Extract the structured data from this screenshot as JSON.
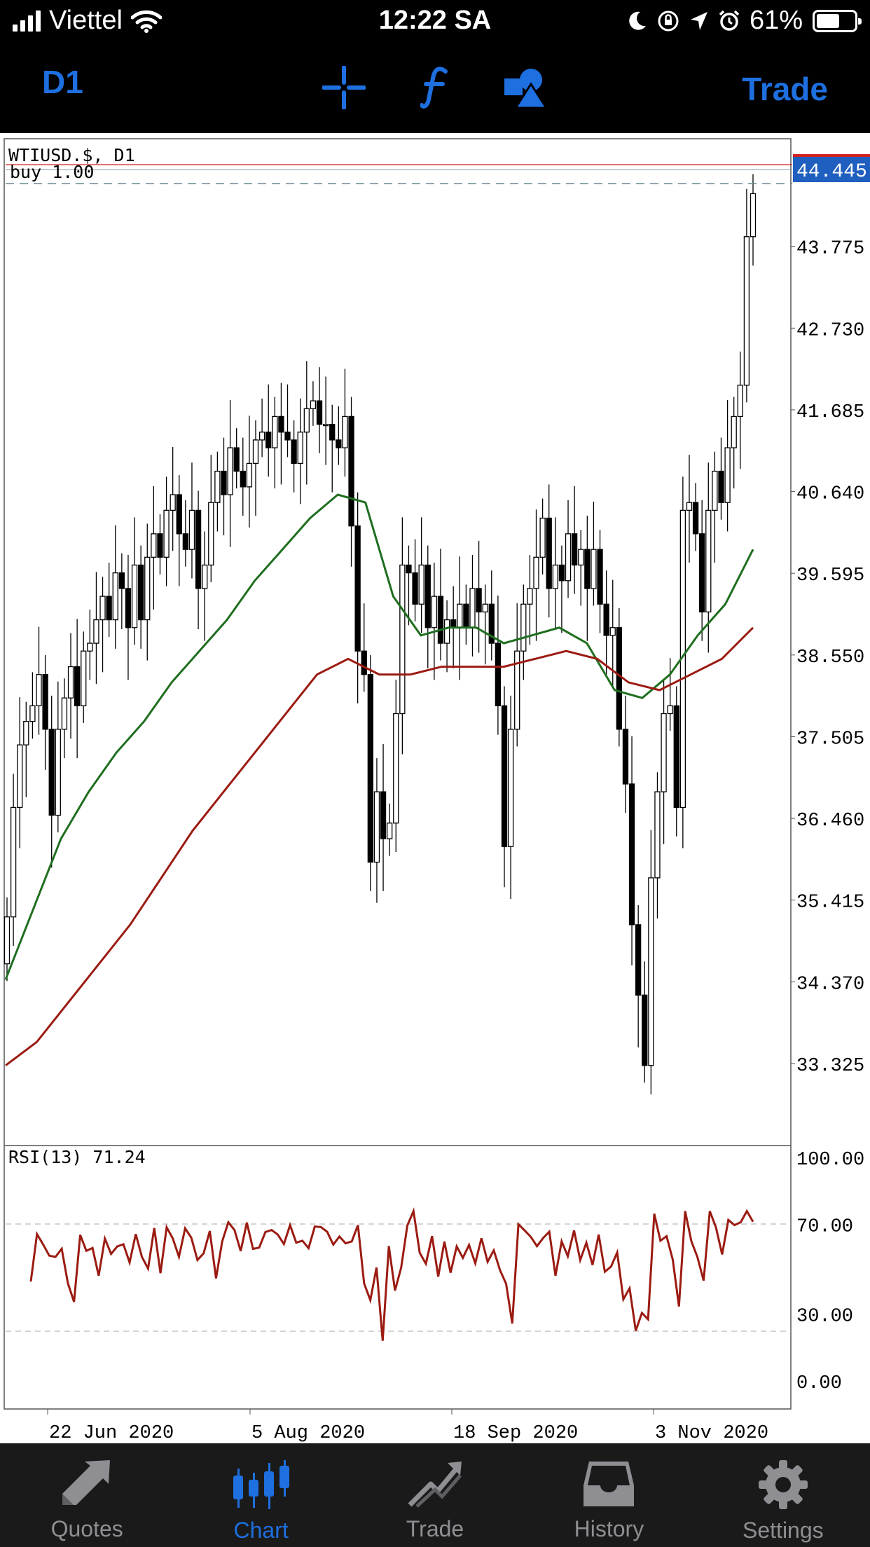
{
  "status_bar": {
    "carrier": "Viettel",
    "time": "12:22 SA",
    "battery": "61%",
    "battery_level": 0.61
  },
  "toolbar": {
    "period": "D1",
    "trade_label": "Trade",
    "icons": [
      "crosshair-icon",
      "function-icon",
      "objects-icon"
    ]
  },
  "chart": {
    "symbol_label": "WTIUSD.$, D1",
    "position_label": "buy 1.00",
    "current_price": "44.445",
    "price_axis": [
      "43.775",
      "42.730",
      "41.685",
      "40.640",
      "39.595",
      "38.550",
      "37.505",
      "36.460",
      "35.415",
      "34.370",
      "33.325"
    ],
    "date_axis": [
      "22 Jun 2020",
      "5 Aug 2020",
      "18 Sep 2020",
      "3 Nov 2020"
    ],
    "indicator_label": "RSI(13) 71.24",
    "rsi_axis": [
      "100.00",
      "70.00",
      "30.00",
      "0.00"
    ],
    "colors": {
      "ma_fast": "#1f6e1f",
      "ma_slow": "#9b1b12",
      "rsi_line": "#9b1b12",
      "price_tag": "#1f5fbf",
      "bid_line": "#d02020"
    }
  },
  "chart_data": {
    "type": "candlestick",
    "symbol": "WTIUSD.$",
    "timeframe": "D1",
    "ylim": [
      32.5,
      45.0
    ],
    "close": [
      35.2,
      36.6,
      37.4,
      37.7,
      37.9,
      38.3,
      37.6,
      36.5,
      37.6,
      38.0,
      38.4,
      37.9,
      38.6,
      38.7,
      39.0,
      39.3,
      39.0,
      39.6,
      39.4,
      38.9,
      39.7,
      39.0,
      39.8,
      40.1,
      39.8,
      40.4,
      40.6,
      40.1,
      39.9,
      40.4,
      39.4,
      39.7,
      40.5,
      40.9,
      40.6,
      41.2,
      40.9,
      40.7,
      41.0,
      41.3,
      41.4,
      41.2,
      41.6,
      41.4,
      41.3,
      41.0,
      41.4,
      41.7,
      41.8,
      41.5,
      41.5,
      41.3,
      41.2,
      41.6,
      40.2,
      38.6,
      38.3,
      35.9,
      36.8,
      36.2,
      36.4,
      37.8,
      39.7,
      39.6,
      39.2,
      39.7,
      38.9,
      39.3,
      38.7,
      39.0,
      38.9,
      39.2,
      38.9,
      39.4,
      39.1,
      39.2,
      38.7,
      37.9,
      36.1,
      37.6,
      38.6,
      39.2,
      39.4,
      39.8,
      40.3,
      39.4,
      39.7,
      39.5,
      40.1,
      39.7,
      39.9,
      39.4,
      39.9,
      39.2,
      38.8,
      38.9,
      37.6,
      36.9,
      35.1,
      34.2,
      33.3,
      35.7,
      36.8,
      37.8,
      37.9,
      36.6,
      40.4,
      40.5,
      40.1,
      39.1,
      40.4,
      40.9,
      40.5,
      41.2,
      41.6,
      42.0,
      43.9,
      44.45
    ],
    "moving_averages": [
      {
        "color": "#1f6e1f",
        "values": [
          34.4,
          35.3,
          36.2,
          36.8,
          37.3,
          37.7,
          38.2,
          38.6,
          39.0,
          39.5,
          39.9,
          40.3,
          40.6,
          40.5,
          39.3,
          38.8,
          38.9,
          38.9,
          38.7,
          38.8,
          38.9,
          38.7,
          38.1,
          38.0,
          38.3,
          38.8,
          39.2,
          39.9
        ]
      },
      {
        "color": "#9b1b12",
        "values": [
          33.3,
          33.6,
          34.1,
          34.6,
          35.1,
          35.7,
          36.3,
          36.8,
          37.3,
          37.8,
          38.3,
          38.5,
          38.3,
          38.3,
          38.4,
          38.4,
          38.4,
          38.5,
          38.6,
          38.5,
          38.2,
          38.1,
          38.3,
          38.5,
          38.9
        ]
      }
    ],
    "rsi": {
      "period": 13,
      "value": 71.24,
      "levels": [
        70,
        30
      ],
      "ylim": [
        0,
        100
      ]
    }
  },
  "tabs": [
    {
      "label": "Quotes",
      "icon": "quotes-icon",
      "active": false
    },
    {
      "label": "Chart",
      "icon": "chart-icon",
      "active": true
    },
    {
      "label": "Trade",
      "icon": "trade-icon",
      "active": false
    },
    {
      "label": "History",
      "icon": "history-icon",
      "active": false
    },
    {
      "label": "Settings",
      "icon": "settings-icon",
      "active": false
    }
  ]
}
